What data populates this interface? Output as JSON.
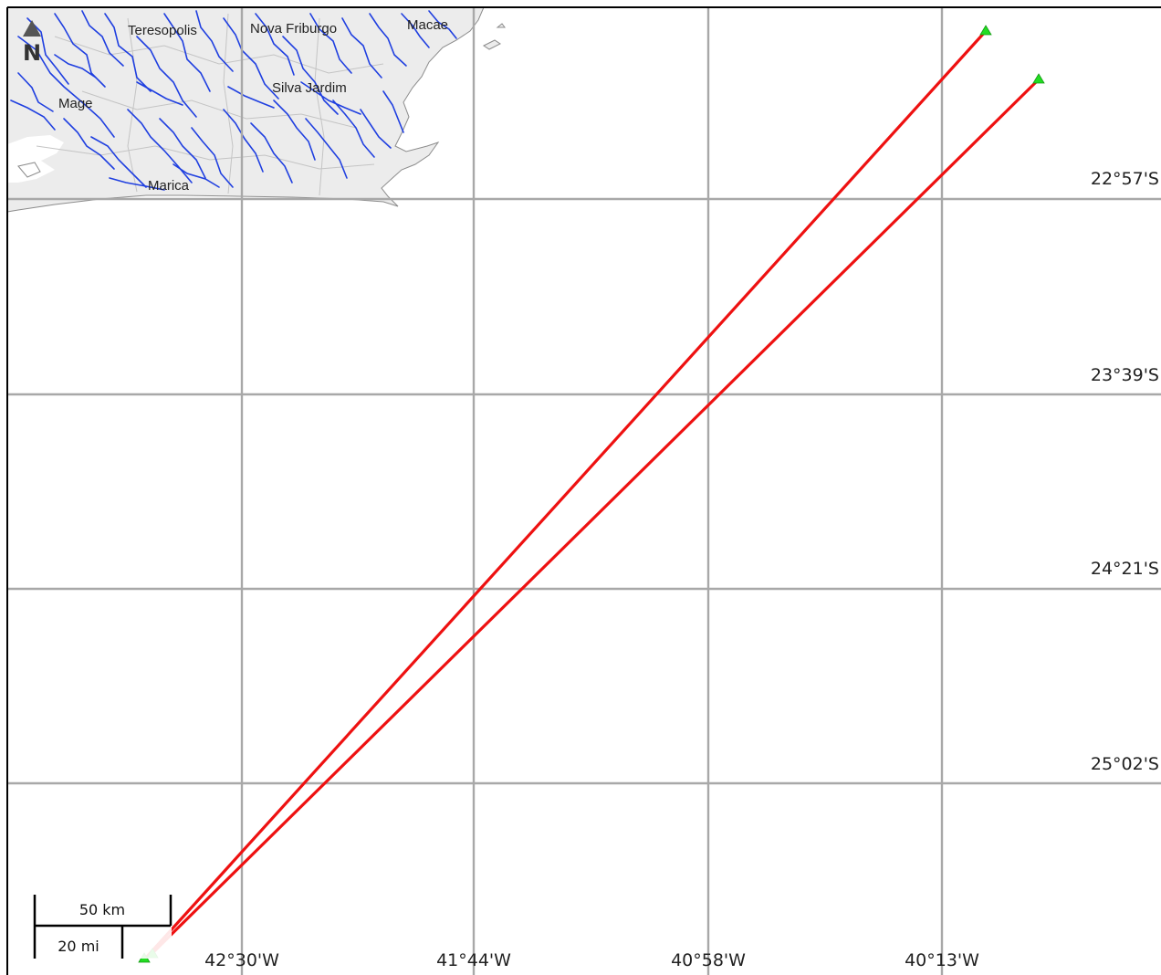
{
  "map": {
    "colors": {
      "land": "#ececec",
      "coast": "#8c8c8c",
      "river": "#1f3fe0",
      "grid": "#a8a8a8",
      "track": "#ee1111",
      "marker": "#22dd22",
      "frame": "#000000"
    },
    "places": [
      "Teresopolis",
      "Nova Friburgo",
      "Macae",
      "Mage",
      "Silva Jardim",
      "Marica"
    ],
    "lat_labels": [
      "22°57'S",
      "23°39'S",
      "24°21'S",
      "25°02'S"
    ],
    "lon_labels": [
      "42°30'W",
      "41°44'W",
      "40°58'W",
      "40°13'W"
    ],
    "north_arrow": {
      "icon": "north-arrow-icon",
      "letter": "N"
    },
    "scale_bar": {
      "km_label": "50 km",
      "mi_label": "20 mi"
    },
    "tracks": 2,
    "markers": 4
  }
}
